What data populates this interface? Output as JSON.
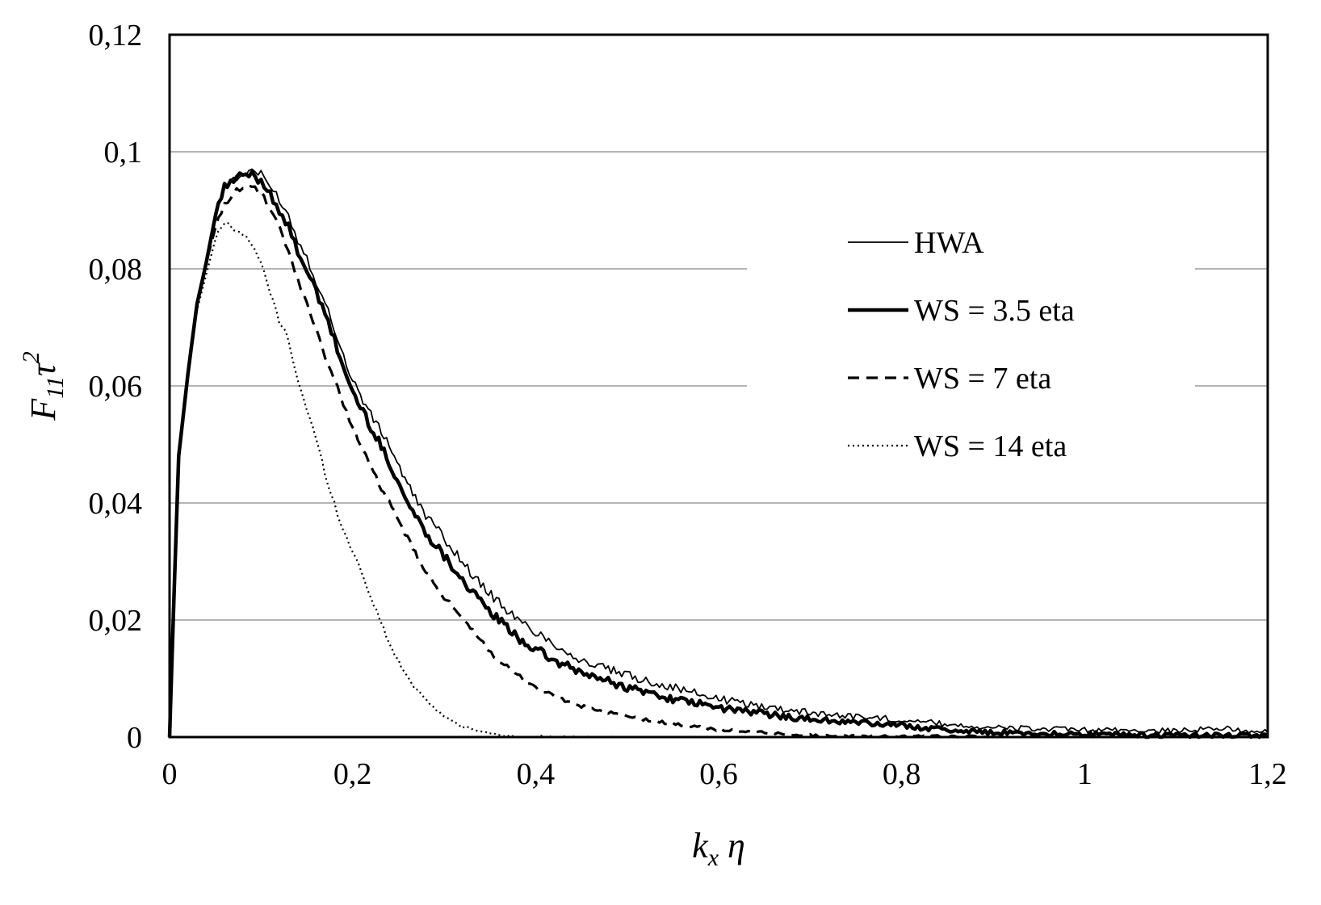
{
  "chart_data": {
    "type": "line",
    "title": "",
    "xlabel": {
      "base": "k",
      "sub": "x",
      "tail": " η"
    },
    "ylabel": {
      "base": "F",
      "sub": "11",
      "mid": "τ",
      "sup": "2"
    },
    "xlim": [
      0,
      1.2
    ],
    "ylim": [
      0,
      0.12
    ],
    "x_ticks": [
      0,
      0.2,
      0.4,
      0.6,
      0.8,
      1.0,
      1.2
    ],
    "x_tick_labels": [
      "0",
      "0,2",
      "0,4",
      "0,6",
      "0,8",
      "1",
      "1,2"
    ],
    "y_ticks": [
      0,
      0.02,
      0.04,
      0.06,
      0.08,
      0.1,
      0.12
    ],
    "y_tick_labels": [
      "0",
      "0,02",
      "0,04",
      "0,06",
      "0,08",
      "0,1",
      "0,12"
    ],
    "grid": "horizontal",
    "legend_position": "top-right",
    "series": [
      {
        "name": "HWA",
        "style": "thin-solid",
        "color": "#000000",
        "x": [
          0,
          0.005,
          0.01,
          0.02,
          0.03,
          0.04,
          0.05,
          0.06,
          0.07,
          0.08,
          0.09,
          0.1,
          0.11,
          0.12,
          0.13,
          0.14,
          0.15,
          0.16,
          0.17,
          0.18,
          0.19,
          0.2,
          0.22,
          0.24,
          0.26,
          0.28,
          0.3,
          0.32,
          0.34,
          0.36,
          0.38,
          0.4,
          0.42,
          0.45,
          0.5,
          0.55,
          0.6,
          0.65,
          0.7,
          0.75,
          0.8,
          0.85,
          0.9,
          1.0,
          1.1,
          1.15,
          1.2
        ],
        "y": [
          0,
          0.025,
          0.048,
          0.062,
          0.074,
          0.081,
          0.089,
          0.094,
          0.095,
          0.096,
          0.097,
          0.096,
          0.094,
          0.092,
          0.089,
          0.085,
          0.082,
          0.078,
          0.074,
          0.07,
          0.065,
          0.061,
          0.055,
          0.05,
          0.043,
          0.038,
          0.034,
          0.03,
          0.026,
          0.023,
          0.02,
          0.018,
          0.016,
          0.013,
          0.0105,
          0.0085,
          0.0065,
          0.0052,
          0.0042,
          0.0035,
          0.003,
          0.0022,
          0.0016,
          0.0012,
          0.0011,
          0.0015,
          0.0008
        ]
      },
      {
        "name": "WS = 3.5 eta",
        "style": "thick-solid",
        "color": "#000000",
        "x": [
          0,
          0.005,
          0.01,
          0.02,
          0.03,
          0.04,
          0.05,
          0.06,
          0.07,
          0.08,
          0.09,
          0.1,
          0.11,
          0.12,
          0.13,
          0.14,
          0.15,
          0.16,
          0.17,
          0.18,
          0.19,
          0.2,
          0.22,
          0.24,
          0.26,
          0.28,
          0.3,
          0.32,
          0.34,
          0.36,
          0.38,
          0.4,
          0.42,
          0.45,
          0.5,
          0.55,
          0.6,
          0.65,
          0.7,
          0.75,
          0.8,
          0.85,
          0.9,
          1.0,
          1.1,
          1.2
        ],
        "y": [
          0,
          0.025,
          0.048,
          0.062,
          0.074,
          0.081,
          0.089,
          0.094,
          0.095,
          0.096,
          0.096,
          0.095,
          0.093,
          0.09,
          0.087,
          0.083,
          0.08,
          0.076,
          0.072,
          0.068,
          0.063,
          0.059,
          0.053,
          0.047,
          0.04,
          0.035,
          0.031,
          0.027,
          0.023,
          0.02,
          0.017,
          0.015,
          0.013,
          0.011,
          0.0085,
          0.0065,
          0.005,
          0.004,
          0.003,
          0.0025,
          0.002,
          0.0012,
          0.0008,
          0.0005,
          0.0003,
          0.0002
        ]
      },
      {
        "name": "WS = 7 eta",
        "style": "dashed",
        "color": "#000000",
        "x": [
          0,
          0.005,
          0.01,
          0.02,
          0.03,
          0.04,
          0.05,
          0.06,
          0.07,
          0.08,
          0.09,
          0.1,
          0.11,
          0.12,
          0.13,
          0.14,
          0.15,
          0.16,
          0.17,
          0.18,
          0.19,
          0.2,
          0.22,
          0.24,
          0.26,
          0.28,
          0.3,
          0.32,
          0.34,
          0.36,
          0.38,
          0.4,
          0.42,
          0.45,
          0.5,
          0.55,
          0.6,
          0.65,
          0.7,
          0.8,
          0.9
        ],
        "y": [
          0,
          0.025,
          0.048,
          0.062,
          0.074,
          0.081,
          0.087,
          0.091,
          0.093,
          0.094,
          0.094,
          0.093,
          0.09,
          0.087,
          0.083,
          0.078,
          0.074,
          0.07,
          0.065,
          0.061,
          0.057,
          0.053,
          0.046,
          0.04,
          0.034,
          0.028,
          0.024,
          0.02,
          0.0165,
          0.013,
          0.0105,
          0.0085,
          0.007,
          0.0052,
          0.0035,
          0.0022,
          0.0013,
          0.0007,
          0.0003,
          0.0001,
          0
        ]
      },
      {
        "name": "WS = 14 eta",
        "style": "dotted",
        "color": "#000000",
        "x": [
          0,
          0.005,
          0.01,
          0.02,
          0.03,
          0.04,
          0.05,
          0.06,
          0.07,
          0.08,
          0.09,
          0.1,
          0.11,
          0.12,
          0.13,
          0.14,
          0.15,
          0.16,
          0.17,
          0.18,
          0.19,
          0.2,
          0.21,
          0.22,
          0.23,
          0.24,
          0.25,
          0.26,
          0.28,
          0.3,
          0.32,
          0.34,
          0.36,
          0.38,
          0.4,
          0.45,
          0.5
        ],
        "y": [
          0,
          0.025,
          0.048,
          0.062,
          0.073,
          0.079,
          0.085,
          0.088,
          0.087,
          0.086,
          0.084,
          0.081,
          0.076,
          0.071,
          0.068,
          0.061,
          0.056,
          0.051,
          0.045,
          0.04,
          0.035,
          0.032,
          0.028,
          0.024,
          0.02,
          0.016,
          0.013,
          0.01,
          0.0065,
          0.0035,
          0.0018,
          0.0009,
          0.0004,
          0.0001,
          0,
          0,
          0
        ]
      }
    ]
  }
}
